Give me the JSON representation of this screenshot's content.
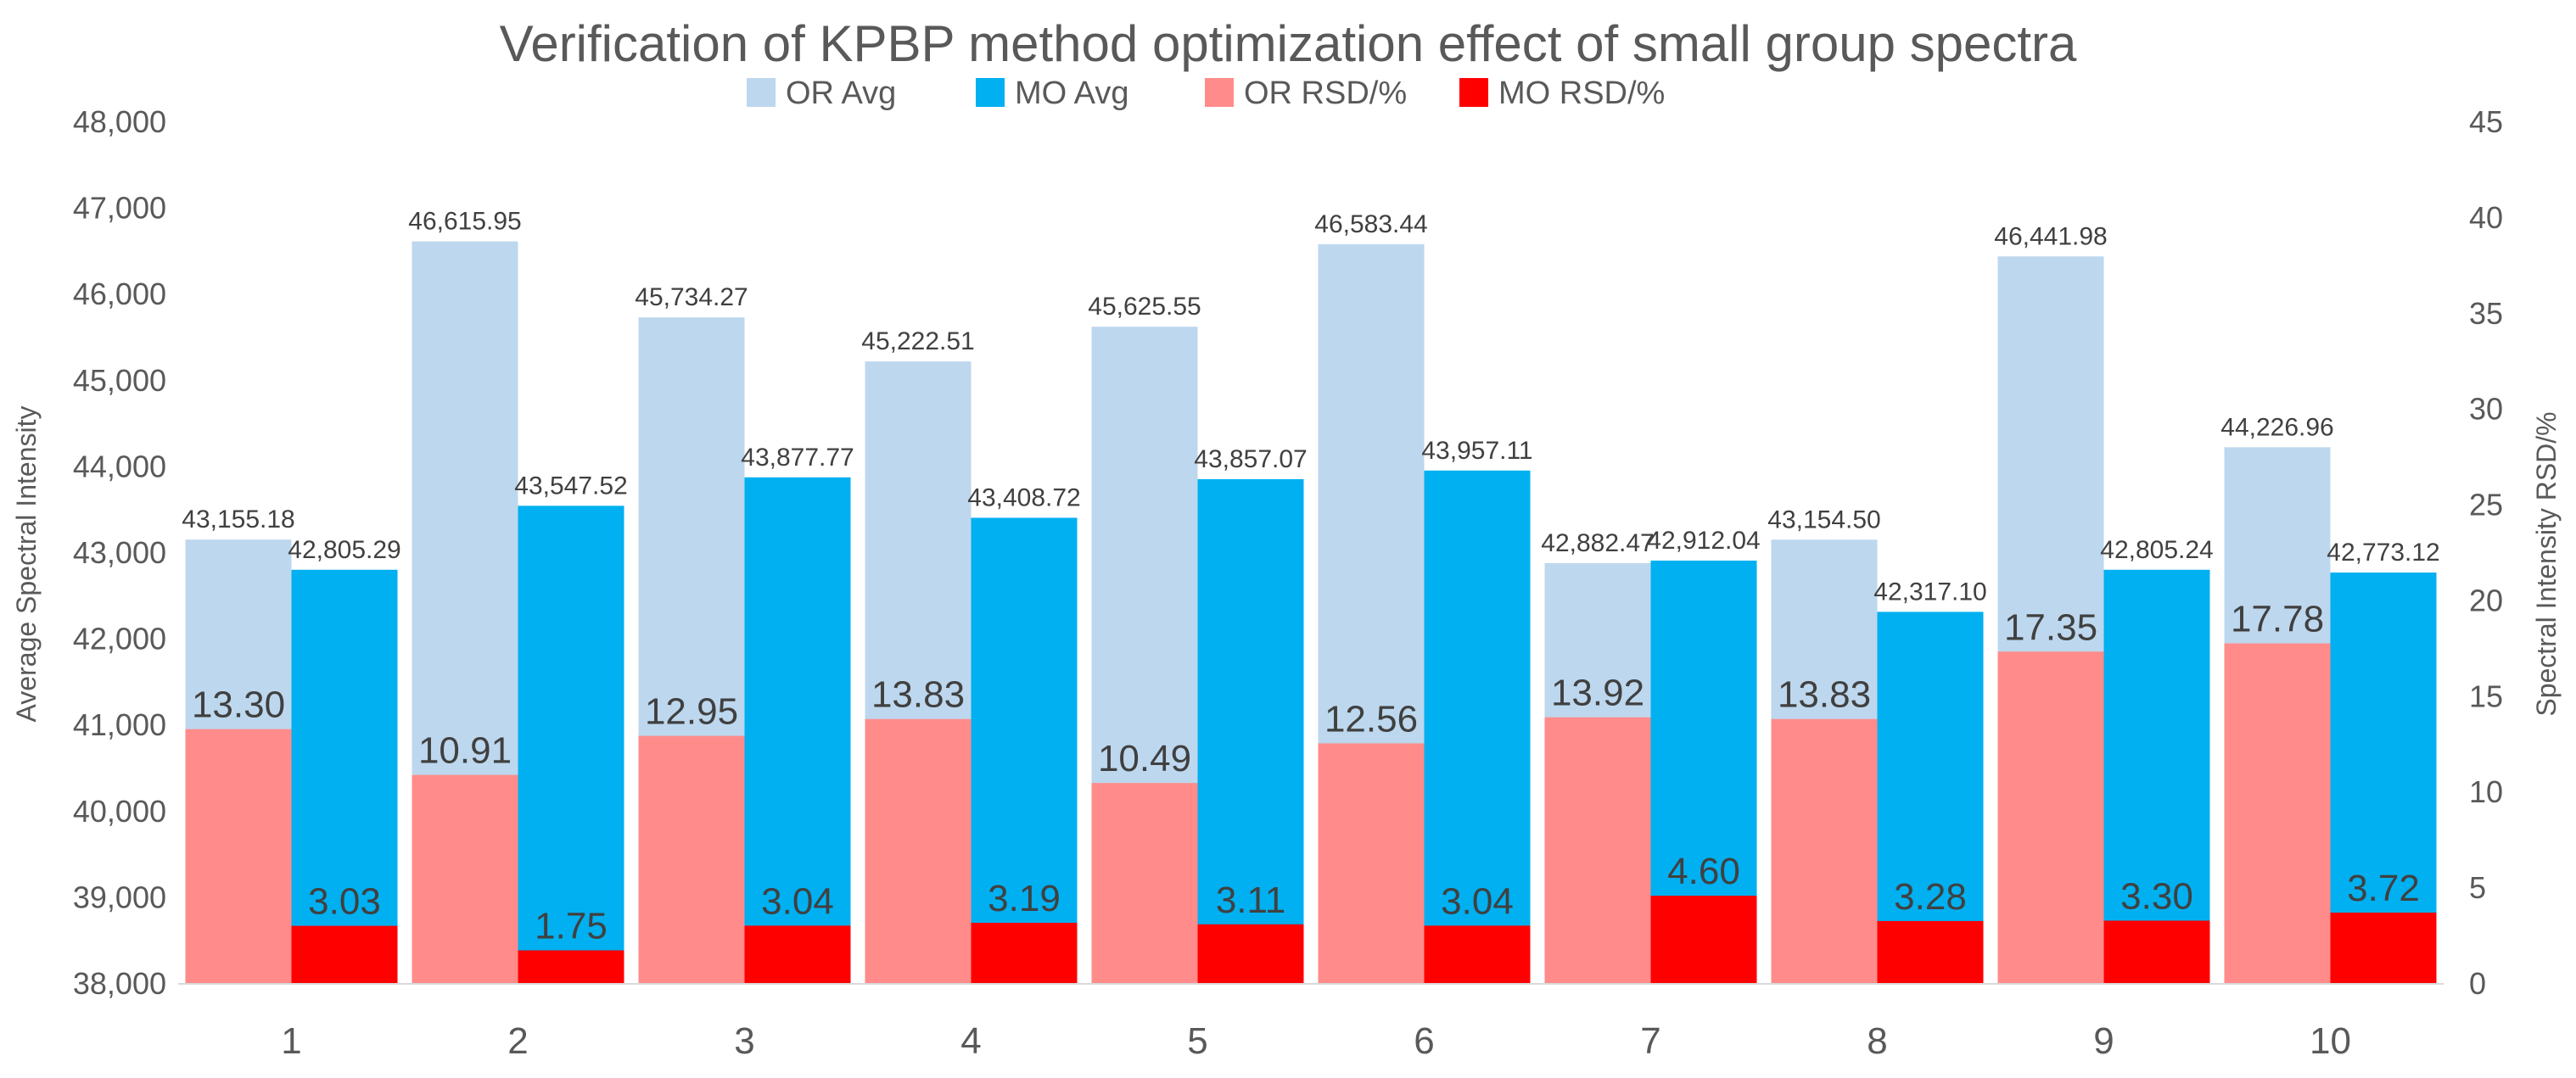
{
  "chart_data": {
    "type": "bar",
    "title": "Verification of KPBP method optimization effect of small group spectra",
    "categories": [
      "1",
      "2",
      "3",
      "4",
      "5",
      "6",
      "7",
      "8",
      "9",
      "10"
    ],
    "ylabel": "Average Spectral Intensity",
    "y2label": "Spectral Intensity RSD/%",
    "ylim": [
      38000,
      48000
    ],
    "y2lim": [
      0,
      45
    ],
    "yticks": [
      "38,000",
      "39,000",
      "40,000",
      "41,000",
      "42,000",
      "43,000",
      "44,000",
      "45,000",
      "46,000",
      "47,000",
      "48,000"
    ],
    "y2ticks": [
      "0",
      "5",
      "10",
      "15",
      "20",
      "25",
      "30",
      "35",
      "40",
      "45"
    ],
    "legend_position": "top-center",
    "series": [
      {
        "name": "OR Avg",
        "axis": "left",
        "color": "#bdd7ee",
        "values": [
          43155.18,
          46615.95,
          45734.27,
          45222.51,
          45625.55,
          46583.44,
          42882.47,
          43154.5,
          46441.98,
          44226.96
        ],
        "labels": [
          "43,155.18",
          "46,615.95",
          "45,734.27",
          "45,222.51",
          "45,625.55",
          "46,583.44",
          "42,882.47",
          "43,154.50",
          "46,441.98",
          "44,226.96"
        ]
      },
      {
        "name": "MO Avg",
        "axis": "left",
        "color": "#00b0f0",
        "values": [
          42805.29,
          43547.52,
          43877.77,
          43408.72,
          43857.07,
          43957.11,
          42912.04,
          42317.1,
          42805.24,
          42773.12
        ],
        "labels": [
          "42,805.29",
          "43,547.52",
          "43,877.77",
          "43,408.72",
          "43,857.07",
          "43,957.11",
          "42,912.04",
          "42,317.10",
          "42,805.24",
          "42,773.12"
        ]
      },
      {
        "name": "OR RSD/%",
        "axis": "right",
        "color": "#ff8b8b",
        "values": [
          13.3,
          10.91,
          12.95,
          13.83,
          10.49,
          12.56,
          13.92,
          13.83,
          17.35,
          17.78
        ],
        "labels": [
          "13.30",
          "10.91",
          "12.95",
          "13.83",
          "10.49",
          "12.56",
          "13.92",
          "13.83",
          "17.35",
          "17.78"
        ]
      },
      {
        "name": "MO RSD/%",
        "axis": "right",
        "color": "#ff0000",
        "values": [
          3.03,
          1.75,
          3.04,
          3.19,
          3.11,
          3.04,
          4.6,
          3.28,
          3.3,
          3.72
        ],
        "labels": [
          "3.03",
          "1.75",
          "3.04",
          "3.19",
          "3.11",
          "3.04",
          "4.60",
          "3.28",
          "3.30",
          "3.72"
        ]
      }
    ]
  }
}
